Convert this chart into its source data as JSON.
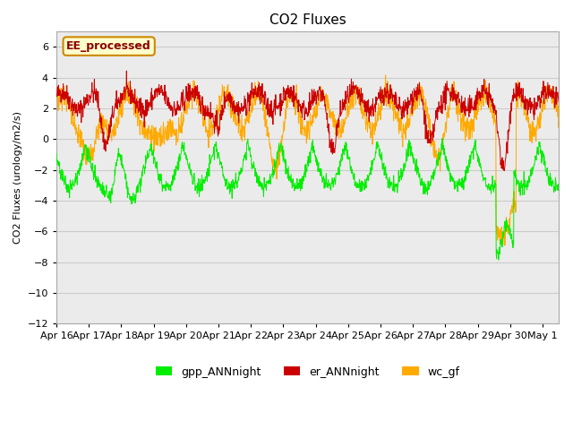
{
  "title": "CO2 Fluxes",
  "ylabel": "CO2 Fluxes (urology/m2/s)",
  "xlim_days": 15.5,
  "ylim": [
    -12,
    7
  ],
  "yticks": [
    -12,
    -10,
    -8,
    -6,
    -4,
    -2,
    0,
    2,
    4,
    6
  ],
  "xtick_positions": [
    0,
    1,
    2,
    3,
    4,
    5,
    6,
    7,
    8,
    9,
    10,
    11,
    12,
    13,
    14,
    15
  ],
  "xtick_labels": [
    "Apr 16",
    "Apr 17",
    "Apr 18",
    "Apr 19",
    "Apr 20",
    "Apr 21",
    "Apr 22",
    "Apr 23",
    "Apr 24",
    "Apr 25",
    "Apr 26",
    "Apr 27",
    "Apr 28",
    "Apr 29",
    "Apr 30",
    "May 1"
  ],
  "colors": {
    "gpp": "#00ee00",
    "er": "#cc0000",
    "wc": "#ffaa00"
  },
  "legend_label": "EE_processed",
  "legend_bg": "#ffffcc",
  "legend_edge": "#cc8800",
  "grid_color": "#cccccc",
  "plot_bg": "#ebebeb",
  "series_names": [
    "gpp_ANNnight",
    "er_ANNnight",
    "wc_gf"
  ],
  "n_points": 1500
}
